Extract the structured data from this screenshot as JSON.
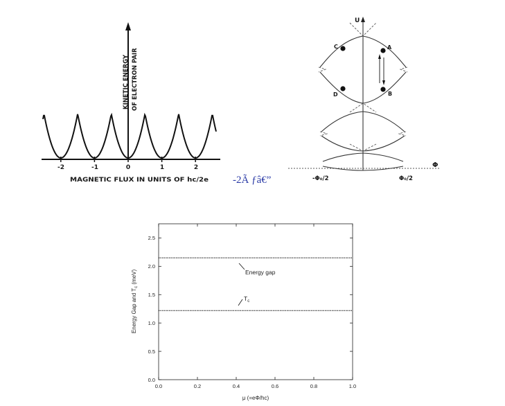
{
  "panel_a": {
    "ylabel_line1": "KINETIC ENERGY",
    "ylabel_line2": "OF ELECTRON PAIR",
    "xlabel": "MAGNETIC FLUX IN UNITS OF  hc/2e",
    "ticks": [
      "-2",
      "-1",
      "0",
      "1",
      "2"
    ]
  },
  "panel_b": {
    "y_axis": "U",
    "x_axis": "Φ",
    "points": [
      "A",
      "B",
      "C",
      "D"
    ],
    "x_tick_left": "-Φ₀/2",
    "x_tick_right": "Φ₀/2"
  },
  "stray_text": "-2Ã ƒâ€”",
  "chart_data": {
    "type": "line",
    "xlabel": "μ (=eΦ/hc)",
    "ylabel": "Energy Gap and T_c (meV)",
    "xlim": [
      0.0,
      1.0
    ],
    "ylim": [
      0.0,
      2.75
    ],
    "x_ticks": [
      "0.0",
      "0.2",
      "0.4",
      "0.6",
      "0.8",
      "1.0"
    ],
    "y_ticks": [
      "0.0",
      "0.5",
      "1.0",
      "1.5",
      "2.0",
      "2.5"
    ],
    "series": [
      {
        "name": "Energy gap",
        "x": [
          0.0,
          1.0
        ],
        "y": [
          2.15,
          2.15
        ]
      },
      {
        "name": "T",
        "subscript": "c",
        "x": [
          0.0,
          1.0
        ],
        "y": [
          1.22,
          1.22
        ]
      }
    ]
  }
}
